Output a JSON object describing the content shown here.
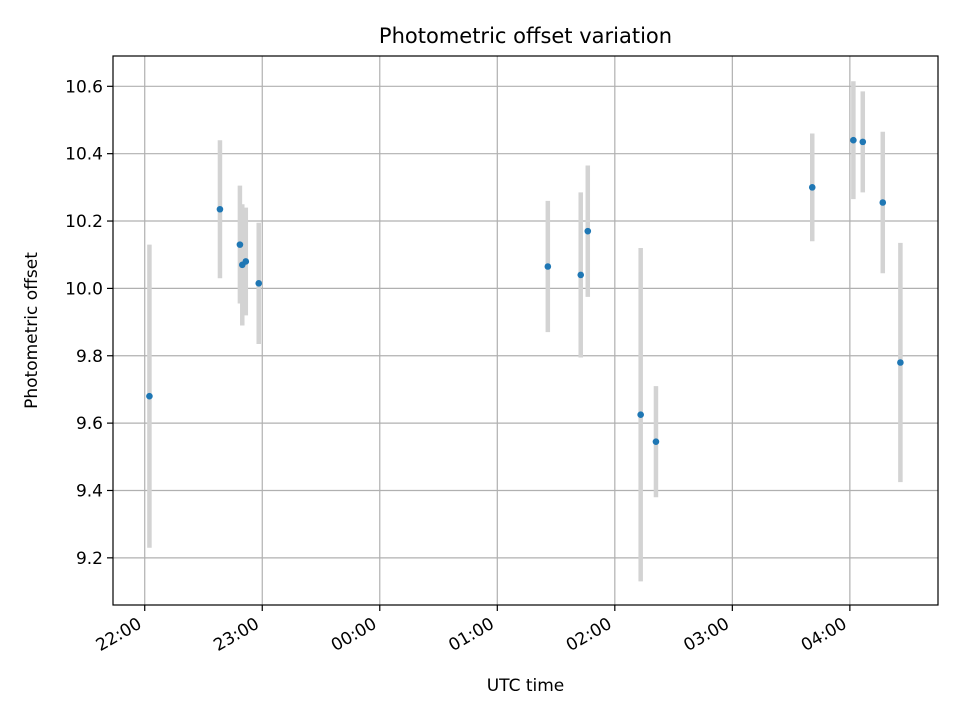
{
  "chart_data": {
    "type": "scatter",
    "title": "Photometric offset variation",
    "xlabel": "UTC time",
    "ylabel": "Photometric offset",
    "x_unit": "UTC time (hours relative to 00:00; 22:00 = -2)",
    "xlim": [
      -2.27,
      4.75
    ],
    "ylim": [
      9.06,
      10.69
    ],
    "x_ticks": [
      {
        "value": -2,
        "label": "22:00"
      },
      {
        "value": -1,
        "label": "23:00"
      },
      {
        "value": 0,
        "label": "00:00"
      },
      {
        "value": 1,
        "label": "01:00"
      },
      {
        "value": 2,
        "label": "02:00"
      },
      {
        "value": 3,
        "label": "03:00"
      },
      {
        "value": 4,
        "label": "04:00"
      }
    ],
    "y_ticks": [
      {
        "value": 9.2,
        "label": "9.2"
      },
      {
        "value": 9.4,
        "label": "9.4"
      },
      {
        "value": 9.6,
        "label": "9.6"
      },
      {
        "value": 9.8,
        "label": "9.8"
      },
      {
        "value": 10.0,
        "label": "10.0"
      },
      {
        "value": 10.2,
        "label": "10.2"
      },
      {
        "value": 10.4,
        "label": "10.4"
      },
      {
        "value": 10.6,
        "label": "10.6"
      }
    ],
    "grid": true,
    "marker_color": "#1f77b4",
    "errorbar_color": "#d3d3d3",
    "points": [
      {
        "x": -1.96,
        "y": 9.68,
        "err": 0.45
      },
      {
        "x": -1.36,
        "y": 10.235,
        "err": 0.205
      },
      {
        "x": -1.19,
        "y": 10.13,
        "err": 0.175
      },
      {
        "x": -1.17,
        "y": 10.07,
        "err": 0.18
      },
      {
        "x": -1.14,
        "y": 10.08,
        "err": 0.16
      },
      {
        "x": -1.03,
        "y": 10.015,
        "err": 0.18
      },
      {
        "x": 1.43,
        "y": 10.065,
        "err": 0.195
      },
      {
        "x": 1.71,
        "y": 10.04,
        "err": 0.245
      },
      {
        "x": 1.77,
        "y": 10.17,
        "err": 0.195
      },
      {
        "x": 2.22,
        "y": 9.625,
        "err": 0.495
      },
      {
        "x": 2.35,
        "y": 9.545,
        "err": 0.165
      },
      {
        "x": 3.68,
        "y": 10.3,
        "err": 0.16
      },
      {
        "x": 4.03,
        "y": 10.44,
        "err": 0.175
      },
      {
        "x": 4.11,
        "y": 10.435,
        "err": 0.15
      },
      {
        "x": 4.28,
        "y": 10.255,
        "err": 0.21
      },
      {
        "x": 4.43,
        "y": 9.78,
        "err": 0.355
      }
    ]
  }
}
